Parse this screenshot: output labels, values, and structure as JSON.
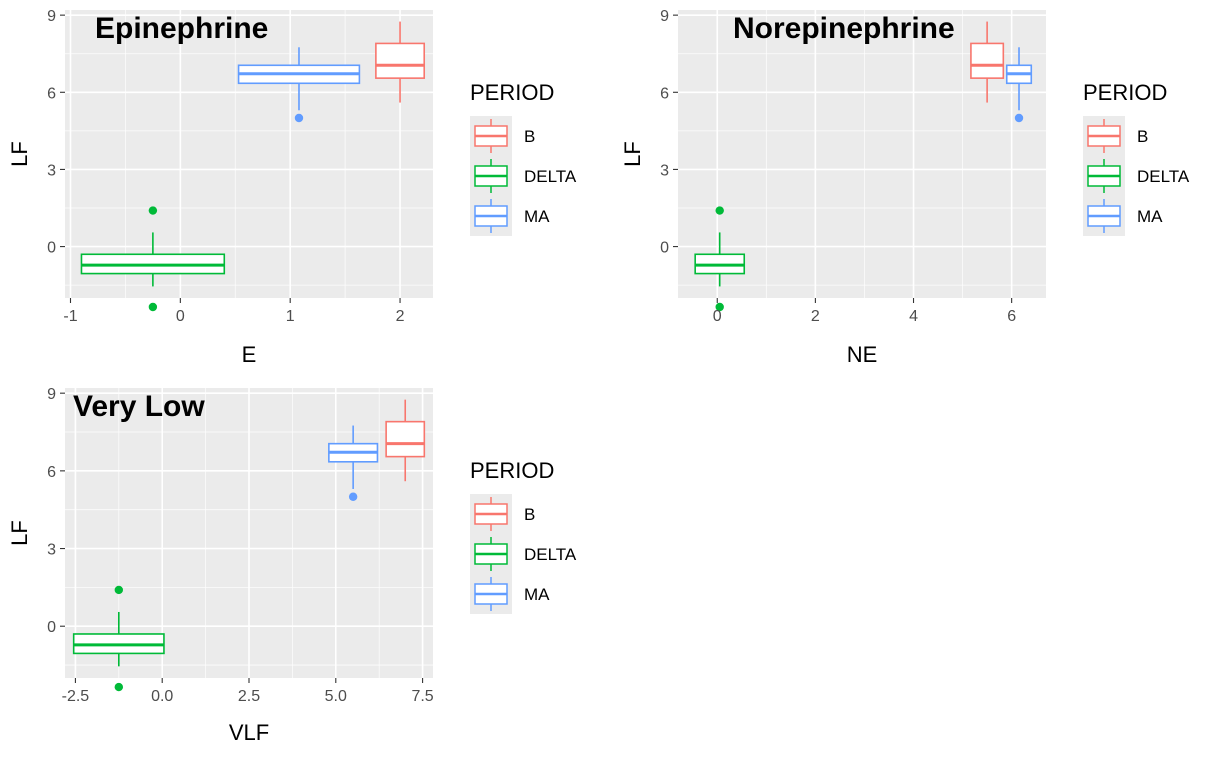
{
  "chart_data": [
    {
      "type": "boxplot",
      "orientation": "horizontal",
      "title": "Epinephrine",
      "xlabel": "E",
      "ylabel": "LF",
      "xlim": [
        -1.05,
        2.3
      ],
      "ylim": [
        -2.0,
        9.2
      ],
      "x_ticks": [
        -1,
        0,
        1,
        2
      ],
      "x_tick_labels": [
        "-1",
        "0",
        "1",
        "2"
      ],
      "y_ticks": [
        0,
        3,
        6,
        9
      ],
      "y_tick_labels": [
        "0",
        "3",
        "6",
        "9"
      ],
      "grid": true,
      "legend": {
        "title": "PERIOD",
        "placement": "right"
      },
      "series": [
        {
          "name": "B",
          "color": "#F8766D",
          "x_center": 2.0,
          "x_half_width": 0.22,
          "whisker_low": 5.6,
          "q1": 6.55,
          "median": 7.05,
          "q3": 7.9,
          "whisker_high": 8.75,
          "outliers": []
        },
        {
          "name": "DELTA",
          "color": "#00BA38",
          "x_center": -0.25,
          "x_half_width": 0.65,
          "whisker_low": -1.55,
          "q1": -1.05,
          "median": -0.72,
          "q3": -0.3,
          "whisker_high": 0.55,
          "outliers": [
            1.4,
            -2.35
          ]
        },
        {
          "name": "MA",
          "color": "#619CFF",
          "x_center": 1.08,
          "x_half_width": 0.55,
          "whisker_low": 5.3,
          "q1": 6.35,
          "median": 6.72,
          "q3": 7.05,
          "whisker_high": 7.75,
          "outliers": [
            5.0
          ]
        }
      ]
    },
    {
      "type": "boxplot",
      "orientation": "horizontal",
      "title": "Norepinephrine",
      "xlabel": "NE",
      "ylabel": "LF",
      "xlim": [
        -0.8,
        6.7
      ],
      "ylim": [
        -2.0,
        9.2
      ],
      "x_ticks": [
        0,
        2,
        4,
        6
      ],
      "x_tick_labels": [
        "0",
        "2",
        "4",
        "6"
      ],
      "y_ticks": [
        0,
        3,
        6,
        9
      ],
      "y_tick_labels": [
        "0",
        "3",
        "6",
        "9"
      ],
      "grid": true,
      "legend": {
        "title": "PERIOD",
        "placement": "right"
      },
      "series": [
        {
          "name": "B",
          "color": "#F8766D",
          "x_center": 5.5,
          "x_half_width": 0.33,
          "whisker_low": 5.6,
          "q1": 6.55,
          "median": 7.05,
          "q3": 7.9,
          "whisker_high": 8.75,
          "outliers": []
        },
        {
          "name": "DELTA",
          "color": "#00BA38",
          "x_center": 0.05,
          "x_half_width": 0.5,
          "whisker_low": -1.55,
          "q1": -1.05,
          "median": -0.72,
          "q3": -0.3,
          "whisker_high": 0.55,
          "outliers": [
            1.4,
            -2.35
          ]
        },
        {
          "name": "MA",
          "color": "#619CFF",
          "x_center": 6.15,
          "x_half_width": 0.25,
          "whisker_low": 5.3,
          "q1": 6.35,
          "median": 6.72,
          "q3": 7.05,
          "whisker_high": 7.75,
          "outliers": [
            5.0
          ]
        }
      ]
    },
    {
      "type": "boxplot",
      "orientation": "horizontal",
      "title": "Very Low",
      "xlabel": "VLF",
      "ylabel": "LF",
      "xlim": [
        -2.8,
        7.8
      ],
      "ylim": [
        -2.0,
        9.2
      ],
      "x_ticks": [
        -2.5,
        0,
        2.5,
        5,
        7.5
      ],
      "x_tick_labels": [
        "-2.5",
        "0.0",
        "2.5",
        "5.0",
        "7.5"
      ],
      "y_ticks": [
        0,
        3,
        6,
        9
      ],
      "y_tick_labels": [
        "0",
        "3",
        "6",
        "9"
      ],
      "grid": true,
      "legend": {
        "title": "PERIOD",
        "placement": "right"
      },
      "series": [
        {
          "name": "B",
          "color": "#F8766D",
          "x_center": 7.0,
          "x_half_width": 0.55,
          "whisker_low": 5.6,
          "q1": 6.55,
          "median": 7.05,
          "q3": 7.9,
          "whisker_high": 8.75,
          "outliers": []
        },
        {
          "name": "DELTA",
          "color": "#00BA38",
          "x_center": -1.25,
          "x_half_width": 1.3,
          "whisker_low": -1.55,
          "q1": -1.05,
          "median": -0.72,
          "q3": -0.3,
          "whisker_high": 0.55,
          "outliers": [
            1.4,
            -2.35
          ]
        },
        {
          "name": "MA",
          "color": "#619CFF",
          "x_center": 5.5,
          "x_half_width": 0.7,
          "whisker_low": 5.3,
          "q1": 6.35,
          "median": 6.72,
          "q3": 7.05,
          "whisker_high": 7.75,
          "outliers": [
            5.0
          ]
        }
      ]
    }
  ]
}
